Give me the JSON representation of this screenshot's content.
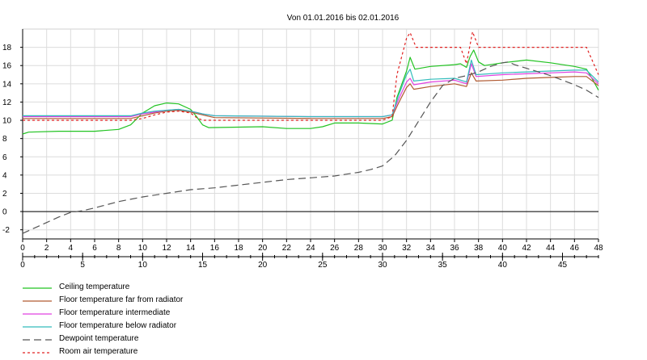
{
  "chart_data": {
    "type": "line",
    "title": "Von 01.01.2016 bis 02.01.2016",
    "xlabel": "",
    "ylabel": "",
    "xlim": [
      0,
      48
    ],
    "ylim": [
      -3,
      20
    ],
    "grid": true,
    "legend_position": "bottom-left",
    "y_ticks": [
      -2,
      0,
      2,
      4,
      6,
      8,
      10,
      12,
      14,
      16,
      18
    ],
    "x_ticks_top": [
      0,
      2,
      4,
      6,
      8,
      10,
      12,
      14,
      16,
      18,
      20,
      22,
      24,
      26,
      28,
      30,
      32,
      34,
      36,
      38,
      40,
      42,
      44,
      46,
      48
    ],
    "x_ticks_bottom": [
      0,
      5,
      10,
      15,
      20,
      25,
      30,
      35,
      40,
      45
    ],
    "x_bottom_scale": [
      0,
      48
    ],
    "series": [
      {
        "name": "Ceiling temperature",
        "color": "#22c322",
        "dash": "solid",
        "points": [
          [
            0,
            8.5
          ],
          [
            0.5,
            8.7
          ],
          [
            3,
            8.8
          ],
          [
            6,
            8.8
          ],
          [
            8,
            9.0
          ],
          [
            9,
            9.5
          ],
          [
            10,
            10.8
          ],
          [
            11,
            11.6
          ],
          [
            12,
            11.9
          ],
          [
            13,
            11.8
          ],
          [
            14,
            11.2
          ],
          [
            14.5,
            10.4
          ],
          [
            15,
            9.5
          ],
          [
            15.5,
            9.2
          ],
          [
            20,
            9.3
          ],
          [
            22,
            9.1
          ],
          [
            24,
            9.1
          ],
          [
            25,
            9.3
          ],
          [
            26,
            9.7
          ],
          [
            28,
            9.7
          ],
          [
            30,
            9.6
          ],
          [
            30.8,
            10.0
          ],
          [
            31.2,
            12.5
          ],
          [
            32,
            15.4
          ],
          [
            32.3,
            16.9
          ],
          [
            32.7,
            15.6
          ],
          [
            34,
            15.9
          ],
          [
            36,
            16.1
          ],
          [
            36.5,
            16.2
          ],
          [
            37,
            15.8
          ],
          [
            37.3,
            17.0
          ],
          [
            37.6,
            17.7
          ],
          [
            38,
            16.4
          ],
          [
            38.5,
            16.0
          ],
          [
            40,
            16.3
          ],
          [
            42,
            16.6
          ],
          [
            44,
            16.3
          ],
          [
            46,
            15.9
          ],
          [
            47,
            15.6
          ],
          [
            47.5,
            14.5
          ],
          [
            48,
            13.3
          ]
        ]
      },
      {
        "name": "Floor temperature far from radiator",
        "color": "#b05a32",
        "dash": "solid",
        "points": [
          [
            0,
            10.2
          ],
          [
            9,
            10.2
          ],
          [
            10,
            10.5
          ],
          [
            11,
            10.8
          ],
          [
            12,
            11.0
          ],
          [
            13,
            11.1
          ],
          [
            14,
            10.9
          ],
          [
            15,
            10.6
          ],
          [
            16,
            10.3
          ],
          [
            24,
            10.2
          ],
          [
            30,
            10.2
          ],
          [
            30.8,
            10.4
          ],
          [
            31.3,
            11.8
          ],
          [
            32,
            13.6
          ],
          [
            32.3,
            14.0
          ],
          [
            32.6,
            13.4
          ],
          [
            34,
            13.7
          ],
          [
            36,
            14.0
          ],
          [
            37,
            13.7
          ],
          [
            37.4,
            15.2
          ],
          [
            37.8,
            14.3
          ],
          [
            40,
            14.4
          ],
          [
            42,
            14.6
          ],
          [
            44,
            14.7
          ],
          [
            46,
            14.8
          ],
          [
            47,
            14.8
          ],
          [
            48,
            13.8
          ]
        ]
      },
      {
        "name": "Floor temperature intermediate",
        "color": "#e040e0",
        "dash": "solid",
        "points": [
          [
            0,
            10.4
          ],
          [
            9,
            10.4
          ],
          [
            10,
            10.7
          ],
          [
            11,
            10.9
          ],
          [
            12,
            11.1
          ],
          [
            13,
            11.2
          ],
          [
            14,
            11.0
          ],
          [
            15,
            10.7
          ],
          [
            16,
            10.5
          ],
          [
            24,
            10.4
          ],
          [
            30,
            10.4
          ],
          [
            30.8,
            10.6
          ],
          [
            31.3,
            12.2
          ],
          [
            32,
            14.2
          ],
          [
            32.3,
            14.6
          ],
          [
            32.6,
            13.9
          ],
          [
            34,
            14.2
          ],
          [
            36,
            14.4
          ],
          [
            37,
            14.0
          ],
          [
            37.4,
            16.2
          ],
          [
            37.8,
            14.8
          ],
          [
            40,
            15.0
          ],
          [
            42,
            15.1
          ],
          [
            44,
            15.2
          ],
          [
            46,
            15.3
          ],
          [
            47,
            15.2
          ],
          [
            48,
            14.0
          ]
        ]
      },
      {
        "name": "Floor temperature below radiator",
        "color": "#33bcbc",
        "dash": "solid",
        "points": [
          [
            0,
            10.5
          ],
          [
            9,
            10.5
          ],
          [
            10,
            10.8
          ],
          [
            11,
            11.0
          ],
          [
            12,
            11.1
          ],
          [
            13,
            11.2
          ],
          [
            14,
            11.0
          ],
          [
            15,
            10.7
          ],
          [
            16,
            10.5
          ],
          [
            24,
            10.4
          ],
          [
            30,
            10.4
          ],
          [
            30.8,
            10.6
          ],
          [
            31.3,
            12.6
          ],
          [
            32,
            15.0
          ],
          [
            32.3,
            15.6
          ],
          [
            32.6,
            14.3
          ],
          [
            34,
            14.5
          ],
          [
            36,
            14.6
          ],
          [
            37,
            14.2
          ],
          [
            37.4,
            16.6
          ],
          [
            37.8,
            15.0
          ],
          [
            40,
            15.2
          ],
          [
            42,
            15.3
          ],
          [
            44,
            15.4
          ],
          [
            46,
            15.5
          ],
          [
            47,
            15.5
          ],
          [
            48,
            14.2
          ]
        ]
      },
      {
        "name": "Dewpoint temperature",
        "color": "#555555",
        "dash": "long-dash",
        "points": [
          [
            0,
            -2.4
          ],
          [
            1,
            -1.8
          ],
          [
            2,
            -1.2
          ],
          [
            3,
            -0.6
          ],
          [
            4,
            -0.1
          ],
          [
            5,
            0.1
          ],
          [
            6,
            0.4
          ],
          [
            8,
            1.1
          ],
          [
            10,
            1.6
          ],
          [
            12,
            2.0
          ],
          [
            14,
            2.4
          ],
          [
            16,
            2.6
          ],
          [
            18,
            2.9
          ],
          [
            20,
            3.2
          ],
          [
            22,
            3.5
          ],
          [
            24,
            3.7
          ],
          [
            26,
            3.9
          ],
          [
            28,
            4.3
          ],
          [
            29,
            4.6
          ],
          [
            30,
            5.0
          ],
          [
            31,
            6.1
          ],
          [
            32,
            7.8
          ],
          [
            33,
            9.9
          ],
          [
            34,
            12.0
          ],
          [
            35,
            13.8
          ],
          [
            36,
            14.6
          ],
          [
            37,
            14.9
          ],
          [
            38,
            15.3
          ],
          [
            39,
            15.9
          ],
          [
            40,
            16.3
          ],
          [
            40.5,
            16.4
          ],
          [
            41,
            16.1
          ],
          [
            42,
            15.7
          ],
          [
            43,
            15.3
          ],
          [
            44,
            14.9
          ],
          [
            45,
            14.4
          ],
          [
            46,
            13.9
          ],
          [
            47,
            13.3
          ],
          [
            48,
            12.5
          ]
        ]
      },
      {
        "name": "Room air temperature",
        "color": "#e02020",
        "dash": "dotted",
        "points": [
          [
            0,
            10.0
          ],
          [
            9,
            10.0
          ],
          [
            10,
            10.2
          ],
          [
            11,
            10.6
          ],
          [
            12,
            10.9
          ],
          [
            13,
            11.0
          ],
          [
            14,
            10.8
          ],
          [
            14.5,
            10.3
          ],
          [
            15,
            10.0
          ],
          [
            30,
            10.0
          ],
          [
            30.8,
            10.4
          ],
          [
            31.2,
            15.0
          ],
          [
            32,
            19.0
          ],
          [
            32.3,
            19.6
          ],
          [
            32.8,
            18.0
          ],
          [
            36,
            18.0
          ],
          [
            36.5,
            18.0
          ],
          [
            37,
            16.2
          ],
          [
            37.5,
            19.7
          ],
          [
            38,
            18.0
          ],
          [
            46,
            18.0
          ],
          [
            47,
            18.0
          ],
          [
            48,
            15.0
          ]
        ]
      }
    ]
  }
}
